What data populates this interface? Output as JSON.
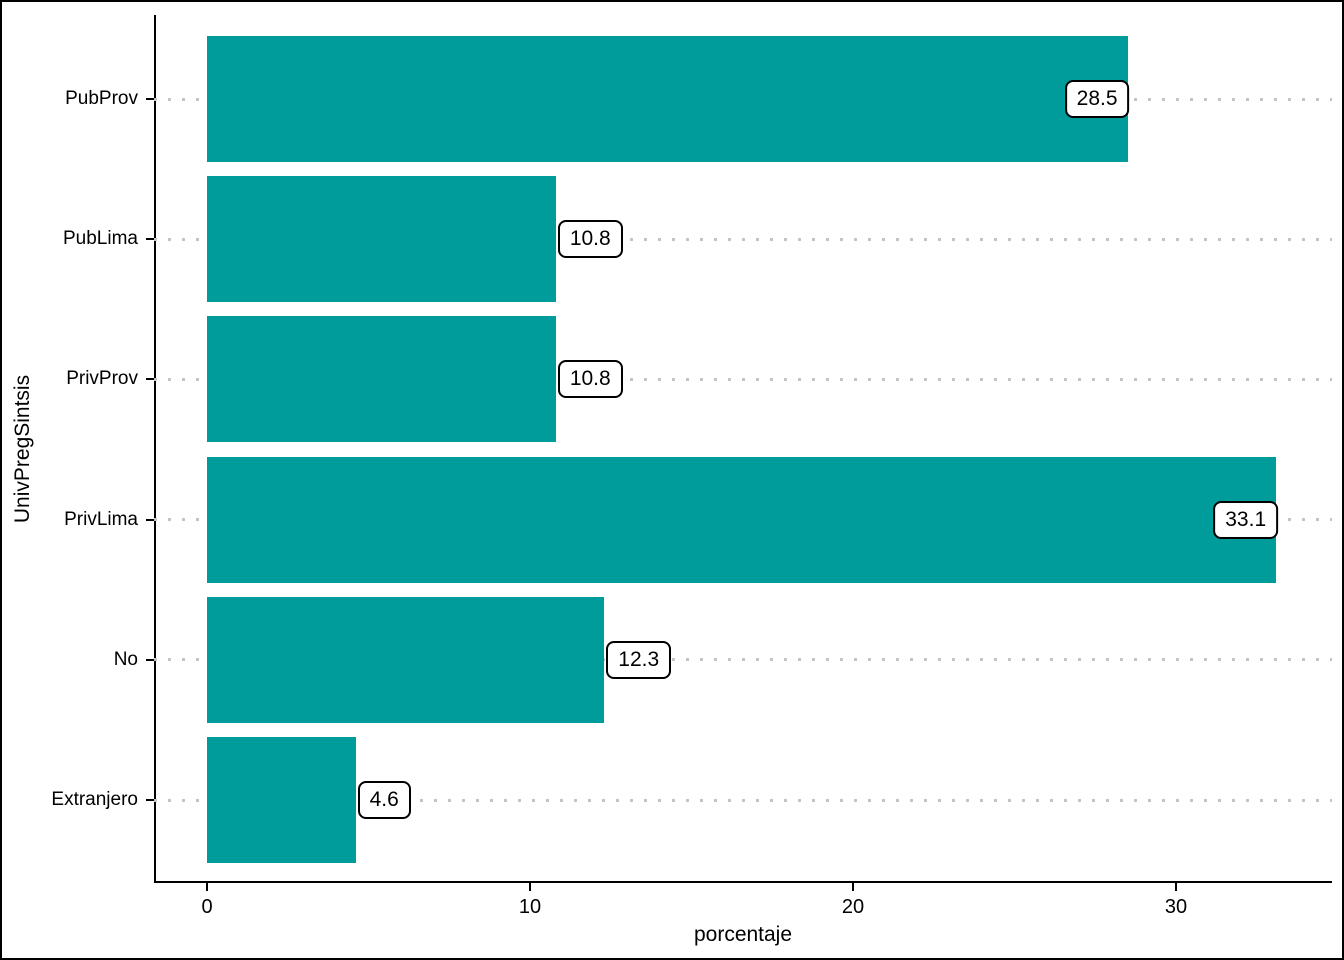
{
  "chart_data": {
    "type": "bar",
    "orientation": "horizontal",
    "title": "",
    "xlabel": "porcentaje",
    "ylabel": "UnivPregSintsis",
    "categories_top_to_bottom": [
      "PubProv",
      "PubLima",
      "PrivProv",
      "PrivLima",
      "No",
      "Extranjero"
    ],
    "values": [
      28.5,
      10.8,
      10.8,
      33.1,
      12.3,
      4.6
    ],
    "value_labels": [
      "28.5",
      "10.8",
      "10.8",
      "33.1",
      "12.3",
      "4.6"
    ],
    "value_label_inside_bar": [
      true,
      false,
      false,
      true,
      false,
      false
    ],
    "xticks": [
      0,
      10,
      20,
      30
    ],
    "xtick_labels": [
      "0",
      "10",
      "20",
      "30"
    ],
    "xlim": [
      -1.65,
      34.8
    ],
    "grid": "horizontal-dotted",
    "legend": "none",
    "colors": {
      "bar_fill": "#009B9B",
      "gridline": "#C4C4C4",
      "axis_line": "#000000",
      "text": "#000000",
      "label_box_fill": "#FFFFFF",
      "label_box_border": "#000000",
      "background": "#FFFFFF"
    }
  }
}
